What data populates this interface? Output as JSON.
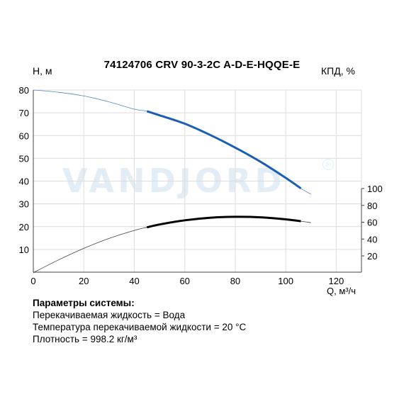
{
  "chart_data": {
    "type": "line",
    "title": "74124706 CRV 90-3-2C A-D-E-HQQE-E",
    "xlabel": "Q, м³/ч",
    "ylabel_left": "H, м",
    "ylabel_right": "КПД, %",
    "xlim": [
      0,
      130
    ],
    "x_ticks": [
      0,
      20,
      40,
      60,
      80,
      100,
      120
    ],
    "ylim_left": [
      0,
      80
    ],
    "y_ticks_left": [
      10,
      20,
      30,
      40,
      50,
      60,
      70,
      80
    ],
    "y_ticks_right": [
      20,
      40,
      60,
      80,
      100
    ],
    "grid": true,
    "series": [
      {
        "axis": "left",
        "color": "#1a5fb4",
        "x": [
          0,
          10,
          20,
          30,
          40,
          45,
          50,
          60,
          70,
          80,
          90,
          100,
          106,
          110
        ],
        "y": [
          80,
          79,
          77.4,
          74.8,
          71.6,
          70.7,
          68.9,
          65.2,
          60.3,
          54.7,
          48.5,
          41.4,
          36.8,
          34.2
        ],
        "operating_range": [
          45,
          106
        ]
      },
      {
        "axis": "right",
        "color": "#000000",
        "x": [
          0,
          10,
          20,
          30,
          40,
          45,
          50,
          60,
          70,
          80,
          90,
          100,
          106,
          110
        ],
        "y": [
          0,
          15.2,
          28.9,
          40.7,
          50.2,
          53.9,
          57.3,
          62.3,
          65.3,
          66.4,
          65.8,
          63.4,
          61.2,
          59.5
        ],
        "operating_range": [
          45,
          106
        ]
      }
    ]
  },
  "watermark": {
    "text": "VANDJORD",
    "reg": "®"
  },
  "params": {
    "title": "Параметры системы:",
    "lines": [
      "Перекачиваемая жидкость = Вода",
      "Температура перекачиваемой жидкости = 20 °C",
      "Плотность = 998.2 кг/м³"
    ]
  }
}
